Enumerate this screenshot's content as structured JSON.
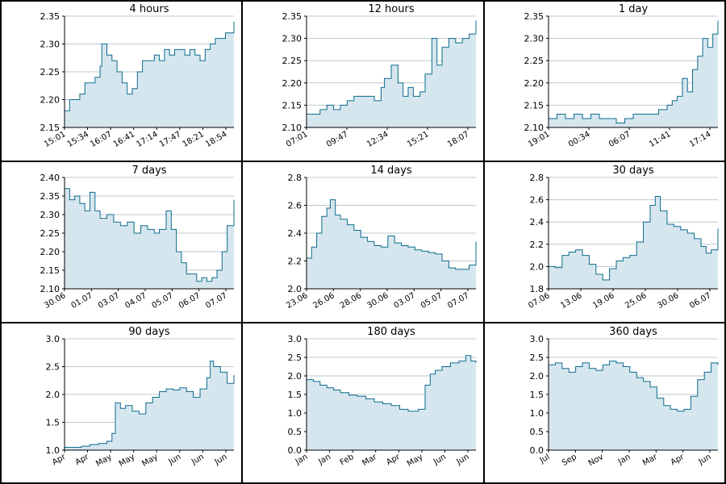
{
  "colors": {
    "line": "#0e6b8f",
    "fill": "#d6e6ee",
    "grid": "#b9c9d0",
    "axis": "#000000",
    "border": "#000000"
  },
  "chart_data": [
    {
      "type": "area",
      "title": "4 hours",
      "ylim": [
        2.15,
        2.35
      ],
      "yticks": [
        "2.15",
        "2.20",
        "2.25",
        "2.30",
        "2.35"
      ],
      "ytick_values": [
        2.15,
        2.2,
        2.25,
        2.3,
        2.35
      ],
      "xticks": [
        "15:01",
        "15:34",
        "16:07",
        "16:41",
        "17:14",
        "17:47",
        "18:21",
        "18:54"
      ],
      "x": [
        0,
        0.03,
        0.06,
        0.09,
        0.12,
        0.15,
        0.18,
        0.21,
        0.22,
        0.25,
        0.28,
        0.31,
        0.34,
        0.37,
        0.4,
        0.43,
        0.46,
        0.5,
        0.53,
        0.56,
        0.59,
        0.62,
        0.65,
        0.68,
        0.71,
        0.74,
        0.77,
        0.8,
        0.83,
        0.86,
        0.89,
        0.92,
        0.95,
        1.0
      ],
      "y": [
        2.18,
        2.2,
        2.2,
        2.21,
        2.23,
        2.23,
        2.24,
        2.26,
        2.3,
        2.28,
        2.27,
        2.25,
        2.23,
        2.21,
        2.22,
        2.25,
        2.27,
        2.27,
        2.28,
        2.27,
        2.29,
        2.28,
        2.29,
        2.29,
        2.28,
        2.29,
        2.28,
        2.27,
        2.29,
        2.3,
        2.31,
        2.31,
        2.32,
        2.34
      ]
    },
    {
      "type": "area",
      "title": "12 hours",
      "ylim": [
        2.1,
        2.35
      ],
      "yticks": [
        "2.10",
        "2.15",
        "2.20",
        "2.25",
        "2.30",
        "2.35"
      ],
      "ytick_values": [
        2.1,
        2.15,
        2.2,
        2.25,
        2.3,
        2.35
      ],
      "xticks": [
        "07:01",
        "09:47",
        "12:34",
        "15:21",
        "18:07"
      ],
      "x": [
        0,
        0.04,
        0.08,
        0.12,
        0.16,
        0.2,
        0.24,
        0.28,
        0.32,
        0.36,
        0.4,
        0.44,
        0.46,
        0.5,
        0.54,
        0.57,
        0.6,
        0.63,
        0.67,
        0.7,
        0.74,
        0.77,
        0.8,
        0.84,
        0.88,
        0.92,
        0.96,
        1.0
      ],
      "y": [
        2.13,
        2.13,
        2.14,
        2.15,
        2.14,
        2.15,
        2.16,
        2.17,
        2.17,
        2.17,
        2.16,
        2.19,
        2.21,
        2.24,
        2.2,
        2.17,
        2.19,
        2.17,
        2.18,
        2.22,
        2.3,
        2.24,
        2.28,
        2.3,
        2.29,
        2.3,
        2.31,
        2.34
      ]
    },
    {
      "type": "area",
      "title": "1 day",
      "ylim": [
        2.1,
        2.35
      ],
      "yticks": [
        "2.10",
        "2.15",
        "2.20",
        "2.25",
        "2.30",
        "2.35"
      ],
      "ytick_values": [
        2.1,
        2.15,
        2.2,
        2.25,
        2.3,
        2.35
      ],
      "xticks": [
        "19:01",
        "00:34",
        "06:07",
        "11:41",
        "17:14"
      ],
      "x": [
        0,
        0.05,
        0.1,
        0.15,
        0.2,
        0.25,
        0.3,
        0.35,
        0.4,
        0.45,
        0.5,
        0.55,
        0.6,
        0.65,
        0.7,
        0.73,
        0.76,
        0.79,
        0.82,
        0.85,
        0.88,
        0.91,
        0.94,
        0.97,
        1.0
      ],
      "y": [
        2.12,
        2.13,
        2.12,
        2.13,
        2.12,
        2.13,
        2.12,
        2.12,
        2.11,
        2.12,
        2.13,
        2.13,
        2.13,
        2.14,
        2.15,
        2.16,
        2.17,
        2.21,
        2.18,
        2.23,
        2.26,
        2.3,
        2.28,
        2.31,
        2.34
      ]
    },
    {
      "type": "area",
      "title": "7 days",
      "ylim": [
        2.1,
        2.4
      ],
      "yticks": [
        "2.10",
        "2.15",
        "2.20",
        "2.25",
        "2.30",
        "2.35",
        "2.40"
      ],
      "ytick_values": [
        2.1,
        2.15,
        2.2,
        2.25,
        2.3,
        2.35,
        2.4
      ],
      "xticks": [
        "30.06",
        "01.07",
        "03.07",
        "04.07",
        "05.07",
        "06.07",
        "07.07"
      ],
      "x": [
        0,
        0.03,
        0.06,
        0.09,
        0.12,
        0.15,
        0.18,
        0.21,
        0.25,
        0.29,
        0.33,
        0.37,
        0.41,
        0.45,
        0.49,
        0.53,
        0.56,
        0.6,
        0.63,
        0.66,
        0.69,
        0.72,
        0.75,
        0.78,
        0.81,
        0.84,
        0.87,
        0.9,
        0.93,
        0.96,
        1.0
      ],
      "y": [
        2.37,
        2.34,
        2.35,
        2.33,
        2.31,
        2.36,
        2.31,
        2.29,
        2.3,
        2.28,
        2.27,
        2.28,
        2.25,
        2.27,
        2.26,
        2.25,
        2.26,
        2.31,
        2.26,
        2.2,
        2.17,
        2.14,
        2.14,
        2.12,
        2.13,
        2.12,
        2.13,
        2.15,
        2.2,
        2.27,
        2.34
      ]
    },
    {
      "type": "area",
      "title": "14 days",
      "ylim": [
        2.0,
        2.8
      ],
      "yticks": [
        "2.0",
        "2.2",
        "2.4",
        "2.6",
        "2.8"
      ],
      "ytick_values": [
        2.0,
        2.2,
        2.4,
        2.6,
        2.8
      ],
      "xticks": [
        "23.06",
        "26.06",
        "28.06",
        "30.06",
        "03.07",
        "05.07",
        "07.07"
      ],
      "x": [
        0,
        0.03,
        0.06,
        0.09,
        0.12,
        0.14,
        0.17,
        0.2,
        0.24,
        0.28,
        0.32,
        0.36,
        0.4,
        0.44,
        0.48,
        0.52,
        0.56,
        0.6,
        0.64,
        0.68,
        0.72,
        0.76,
        0.8,
        0.84,
        0.88,
        0.92,
        0.96,
        1.0
      ],
      "y": [
        2.22,
        2.3,
        2.4,
        2.52,
        2.58,
        2.64,
        2.53,
        2.5,
        2.46,
        2.42,
        2.37,
        2.34,
        2.31,
        2.3,
        2.38,
        2.33,
        2.31,
        2.3,
        2.28,
        2.27,
        2.26,
        2.25,
        2.2,
        2.15,
        2.14,
        2.14,
        2.17,
        2.34
      ]
    },
    {
      "type": "area",
      "title": "30 days",
      "ylim": [
        1.8,
        2.8
      ],
      "yticks": [
        "1.8",
        "2.0",
        "2.2",
        "2.4",
        "2.6",
        "2.8"
      ],
      "ytick_values": [
        1.8,
        2.0,
        2.2,
        2.4,
        2.6,
        2.8
      ],
      "xticks": [
        "07.06",
        "13.06",
        "19.06",
        "25.06",
        "30.06",
        "06.07"
      ],
      "x": [
        0,
        0.04,
        0.08,
        0.12,
        0.16,
        0.2,
        0.24,
        0.28,
        0.32,
        0.36,
        0.4,
        0.44,
        0.48,
        0.52,
        0.56,
        0.6,
        0.63,
        0.66,
        0.7,
        0.74,
        0.78,
        0.82,
        0.86,
        0.9,
        0.93,
        0.96,
        1.0
      ],
      "y": [
        2.0,
        1.99,
        2.1,
        2.13,
        2.15,
        2.1,
        2.02,
        1.93,
        1.88,
        1.98,
        2.05,
        2.08,
        2.1,
        2.22,
        2.4,
        2.55,
        2.63,
        2.5,
        2.38,
        2.36,
        2.33,
        2.3,
        2.25,
        2.18,
        2.12,
        2.15,
        2.34
      ]
    },
    {
      "type": "area",
      "title": "90 days",
      "ylim": [
        1.0,
        3.0
      ],
      "yticks": [
        "1.0",
        "1.5",
        "2.0",
        "2.5",
        "3.0"
      ],
      "ytick_values": [
        1.0,
        1.5,
        2.0,
        2.5,
        3.0
      ],
      "xticks": [
        "Apr",
        "Apr",
        "May",
        "May",
        "May",
        "Jun",
        "Jun",
        "Jun"
      ],
      "x": [
        0,
        0.05,
        0.1,
        0.15,
        0.2,
        0.25,
        0.28,
        0.3,
        0.33,
        0.36,
        0.4,
        0.44,
        0.48,
        0.52,
        0.56,
        0.6,
        0.64,
        0.68,
        0.72,
        0.76,
        0.8,
        0.84,
        0.86,
        0.88,
        0.92,
        0.96,
        1.0
      ],
      "y": [
        1.05,
        1.05,
        1.07,
        1.1,
        1.12,
        1.16,
        1.3,
        1.85,
        1.75,
        1.8,
        1.7,
        1.65,
        1.85,
        1.95,
        2.05,
        2.1,
        2.08,
        2.12,
        2.05,
        1.95,
        2.1,
        2.3,
        2.6,
        2.5,
        2.4,
        2.2,
        2.35
      ]
    },
    {
      "type": "area",
      "title": "180 days",
      "ylim": [
        0.0,
        3.0
      ],
      "yticks": [
        "0.0",
        "0.5",
        "1.0",
        "1.5",
        "2.0",
        "2.5",
        "3.0"
      ],
      "ytick_values": [
        0,
        0.5,
        1.0,
        1.5,
        2.0,
        2.5,
        3.0
      ],
      "xticks": [
        "Jan",
        "Jan",
        "Feb",
        "Mar",
        "Apr",
        "May",
        "Jun",
        "Jun"
      ],
      "x": [
        0,
        0.04,
        0.08,
        0.12,
        0.16,
        0.2,
        0.25,
        0.3,
        0.35,
        0.4,
        0.45,
        0.5,
        0.55,
        0.6,
        0.66,
        0.7,
        0.73,
        0.76,
        0.8,
        0.85,
        0.9,
        0.94,
        0.97,
        1.0
      ],
      "y": [
        1.9,
        1.85,
        1.75,
        1.68,
        1.62,
        1.55,
        1.48,
        1.45,
        1.38,
        1.3,
        1.25,
        1.2,
        1.1,
        1.05,
        1.1,
        1.75,
        2.05,
        2.15,
        2.25,
        2.35,
        2.4,
        2.55,
        2.4,
        2.35
      ]
    },
    {
      "type": "area",
      "title": "360 days",
      "ylim": [
        0.0,
        3.0
      ],
      "yticks": [
        "0.0",
        "0.5",
        "1.0",
        "1.5",
        "2.0",
        "2.5",
        "3.0"
      ],
      "ytick_values": [
        0,
        0.5,
        1.0,
        1.5,
        2.0,
        2.5,
        3.0
      ],
      "xticks": [
        "Jul",
        "Sep",
        "Nov",
        "Jan",
        "Mar",
        "Apr",
        "Jun"
      ],
      "x": [
        0,
        0.04,
        0.08,
        0.12,
        0.16,
        0.2,
        0.24,
        0.28,
        0.32,
        0.36,
        0.4,
        0.44,
        0.48,
        0.52,
        0.56,
        0.6,
        0.64,
        0.68,
        0.72,
        0.76,
        0.8,
        0.84,
        0.88,
        0.92,
        0.96,
        1.0
      ],
      "y": [
        2.3,
        2.35,
        2.2,
        2.1,
        2.25,
        2.35,
        2.2,
        2.15,
        2.3,
        2.4,
        2.35,
        2.25,
        2.1,
        1.95,
        1.85,
        1.7,
        1.4,
        1.2,
        1.1,
        1.05,
        1.1,
        1.45,
        1.9,
        2.1,
        2.35,
        2.3
      ]
    }
  ]
}
